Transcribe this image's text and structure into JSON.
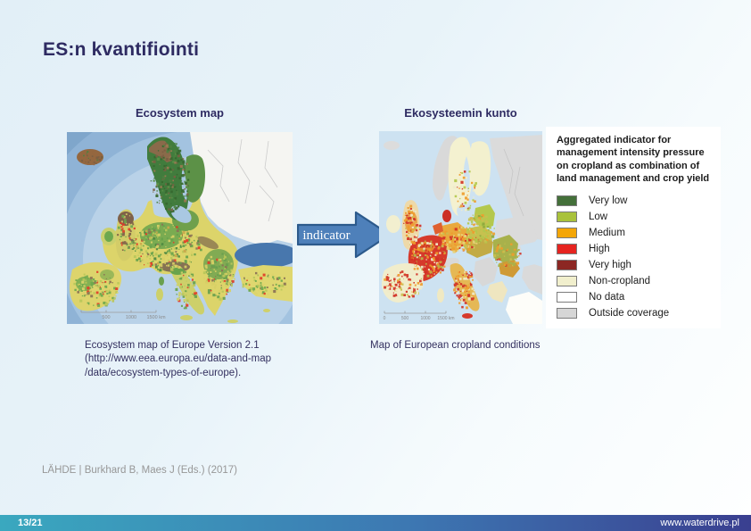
{
  "slide": {
    "title": "ES:n kvantifiointi"
  },
  "ecosystem_map": {
    "header": "Ecosystem map",
    "caption_lines": [
      "Ecosystem map of Europe Version 2.1",
      "(http://www.eea.europa.eu/data-and-map",
      "/data/ecosystem-types-of-europe)."
    ],
    "scale_labels": [
      "500",
      "1000",
      "1500 km"
    ]
  },
  "condition_map": {
    "header": "Ekosysteemin kunto",
    "caption": "Map of European cropland conditions",
    "scale_labels": [
      "0",
      "500",
      "1000",
      "1500 km"
    ]
  },
  "arrow": {
    "label": "indicator",
    "fill": "#4e80ba",
    "stroke": "#2c5a8c"
  },
  "legend": {
    "title": "Aggregated indicator for management intensity pressure on cropland as combination of land management and crop yield",
    "items": [
      {
        "label": "Very low",
        "color": "#44703a"
      },
      {
        "label": "Low",
        "color": "#a9c23b"
      },
      {
        "label": "Medium",
        "color": "#f4a607"
      },
      {
        "label": "High",
        "color": "#e62420"
      },
      {
        "label": "Very high",
        "color": "#8c2723"
      },
      {
        "label": "Non-cropland",
        "color": "#f1efcd"
      },
      {
        "label": "No data",
        "color": "#ffffff"
      },
      {
        "label": "Outside coverage",
        "color": "#d6d6d6"
      }
    ]
  },
  "source": "LÄHDE | Burkhard B, Maes J (Eds.) (2017)",
  "footer": {
    "page": "13/21",
    "website": "www.waterdrive.pl",
    "gradient": [
      "#3aa8bf",
      "#3d77b2",
      "#3a3f90"
    ]
  }
}
